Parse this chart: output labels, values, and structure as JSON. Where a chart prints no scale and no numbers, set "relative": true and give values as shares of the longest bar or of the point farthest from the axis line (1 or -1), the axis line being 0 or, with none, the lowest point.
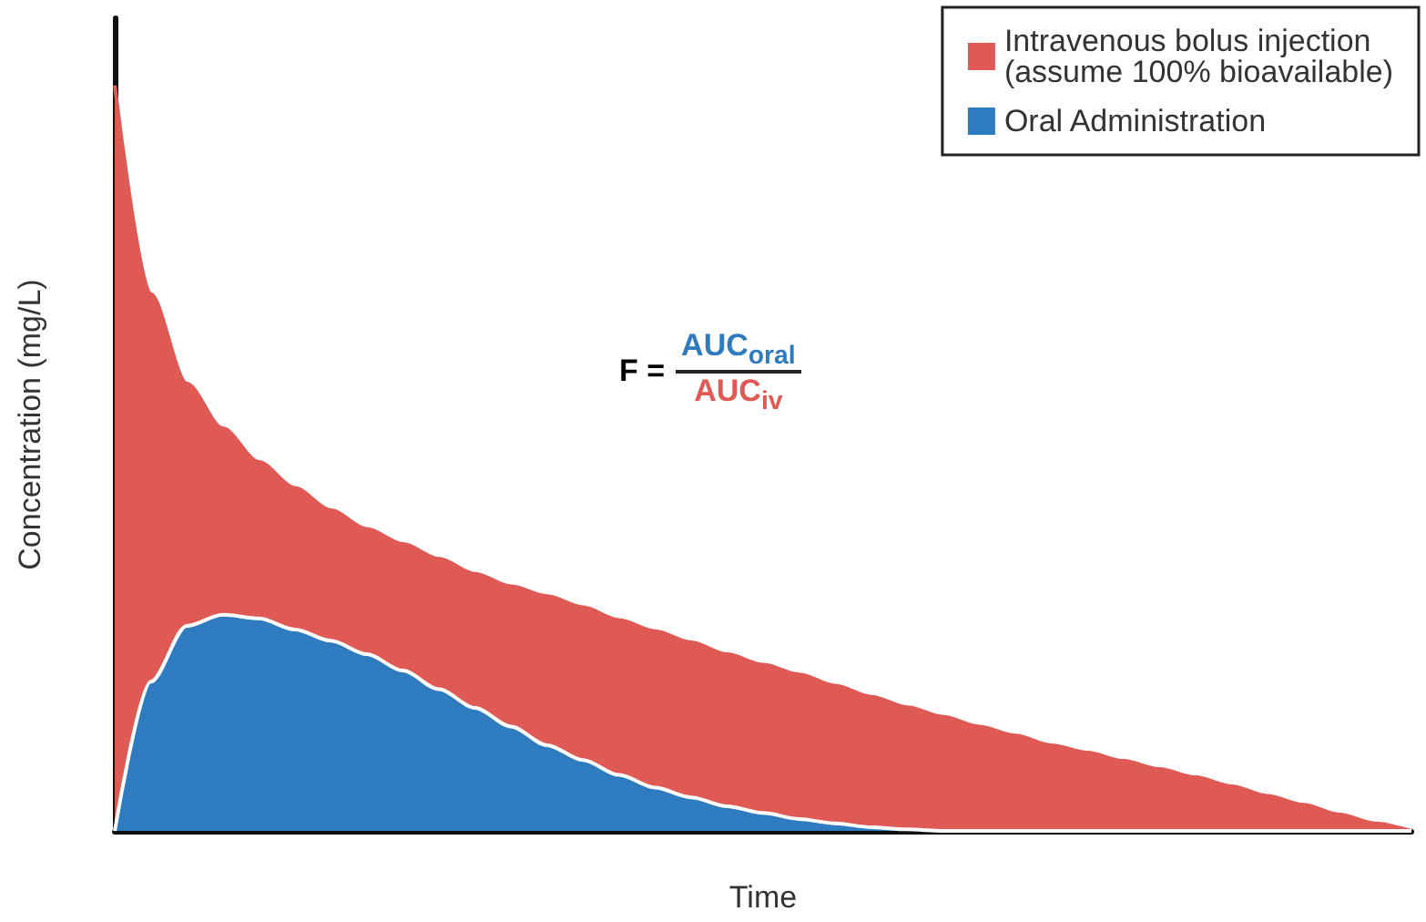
{
  "chart_data": {
    "type": "area",
    "relative": true,
    "xlabel": "Time",
    "ylabel": "Concentration (mg/L)",
    "legend": "top right",
    "grid": false,
    "marker": "none",
    "categories": [
      null,
      null,
      null,
      null,
      null,
      null,
      null,
      null,
      null,
      null,
      null,
      null,
      null,
      null,
      null,
      null,
      null,
      null,
      null,
      null,
      null,
      null,
      null,
      null,
      null,
      null,
      null,
      null,
      null,
      null,
      null,
      null,
      null,
      null,
      null,
      null,
      null
    ],
    "series": [
      {
        "name": "Intravenous bolus injection\n(assume 100% bioavailable)",
        "color": "#e05a55",
        "values": [
          1.0,
          0.72,
          0.6,
          0.54,
          0.495,
          0.46,
          0.43,
          0.405,
          0.385,
          0.365,
          0.345,
          0.328,
          0.315,
          0.3,
          0.283,
          0.268,
          0.253,
          0.237,
          0.223,
          0.21,
          0.195,
          0.18,
          0.166,
          0.153,
          0.14,
          0.128,
          0.115,
          0.105,
          0.094,
          0.083,
          0.072,
          0.06,
          0.047,
          0.035,
          0.022,
          0.01,
          0
        ]
      },
      {
        "name": "Oral Administration",
        "color": "#2f7bbf",
        "values": [
          0,
          0.2,
          0.275,
          0.29,
          0.285,
          0.27,
          0.255,
          0.237,
          0.215,
          0.19,
          0.165,
          0.14,
          0.115,
          0.095,
          0.075,
          0.058,
          0.045,
          0.033,
          0.024,
          0.016,
          0.01,
          0.005,
          0.002,
          0,
          0,
          0,
          0,
          0,
          0,
          0,
          0,
          0,
          0,
          0,
          0,
          0,
          0
        ]
      }
    ],
    "annotations": [
      "F =",
      "AUC$_{oral}$",
      "AUC$_{iv}$"
    ]
  }
}
